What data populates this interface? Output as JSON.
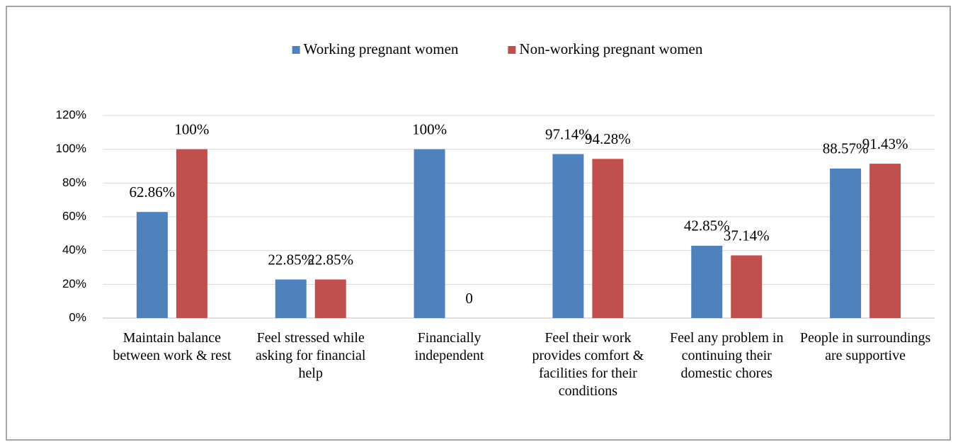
{
  "chart_data": {
    "type": "bar",
    "categories": [
      "Maintain balance between work & rest",
      "Feel stressed while asking for financial help",
      "Financially independent",
      "Feel their work provides comfort & facilities for their conditions",
      "Feel any problem in continuing their domestic chores",
      "People in surroundings are supportive"
    ],
    "series": [
      {
        "name": "Working pregnant women",
        "color": "#4f81bd",
        "values": [
          62.86,
          22.85,
          100,
          97.14,
          42.85,
          88.57
        ],
        "value_labels": [
          "62.86%",
          "22.85%",
          "100%",
          "97.14%",
          "42.85%",
          "88.57%"
        ]
      },
      {
        "name": "Non-working pregnant women",
        "color": "#c0504d",
        "values": [
          100,
          22.85,
          0,
          94.28,
          37.14,
          91.43
        ],
        "value_labels": [
          "100%",
          "22.85%",
          "0",
          "94.28%",
          "37.14%",
          "91.43%"
        ]
      }
    ],
    "ylim": [
      0,
      120
    ],
    "yticks": [
      {
        "value": 0,
        "label": "0%"
      },
      {
        "value": 20,
        "label": "20%"
      },
      {
        "value": 40,
        "label": "40%"
      },
      {
        "value": 60,
        "label": "60%"
      },
      {
        "value": 80,
        "label": "80%"
      },
      {
        "value": 100,
        "label": "100%"
      },
      {
        "value": 120,
        "label": "120%"
      }
    ],
    "grid": true,
    "legend": "top"
  }
}
